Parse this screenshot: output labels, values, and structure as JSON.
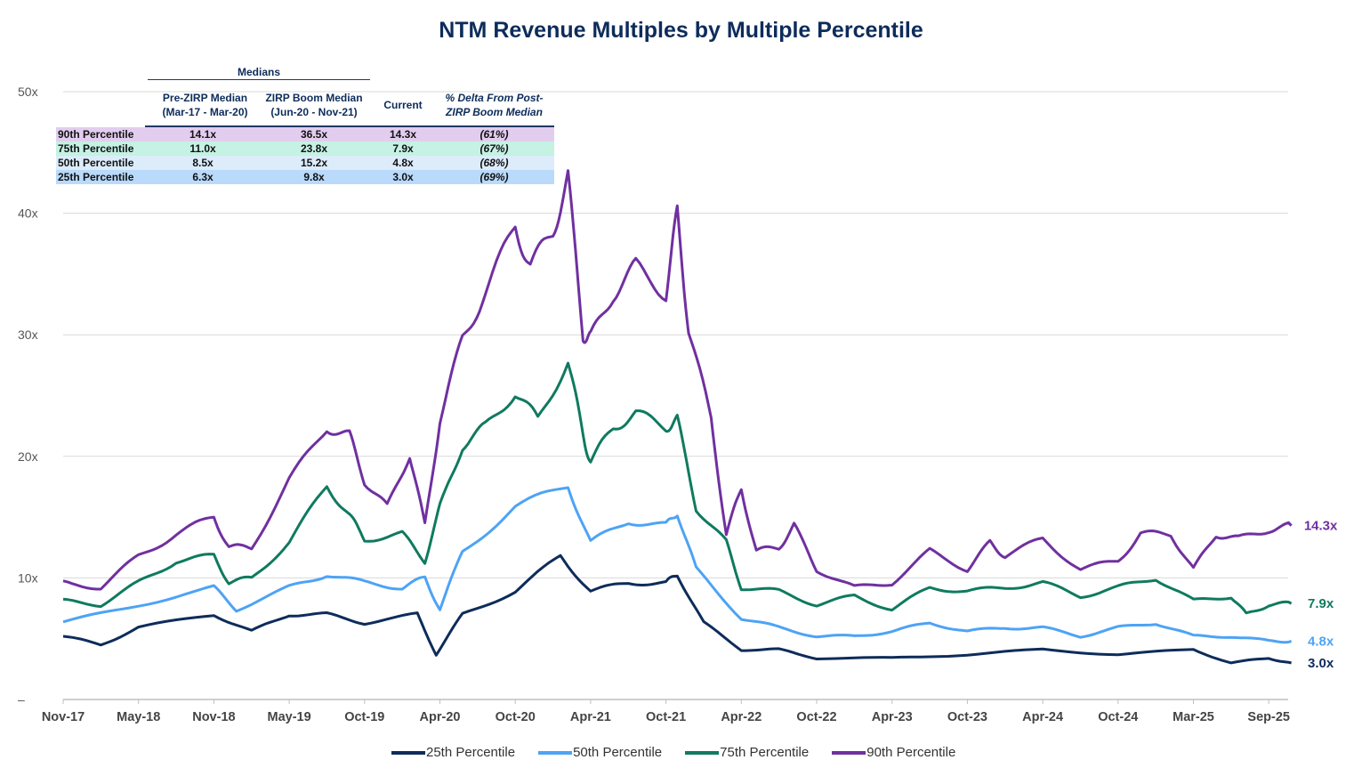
{
  "chart_data": {
    "type": "line",
    "title": "NTM Revenue Multiples by Multiple Percentile",
    "xlabel": "",
    "ylabel": "",
    "ylim": [
      0,
      50
    ],
    "y_ticks": [
      "–",
      "10x",
      "20x",
      "30x",
      "40x",
      "50x"
    ],
    "x_ticks": [
      "Nov-17",
      "May-18",
      "Nov-18",
      "May-19",
      "Oct-19",
      "Apr-20",
      "Oct-20",
      "Apr-21",
      "Oct-21",
      "Apr-22",
      "Oct-22",
      "Apr-23",
      "Oct-23",
      "Apr-24",
      "Oct-24",
      "Mar-25",
      "Sep-25"
    ],
    "x_units": "tick index (0 = Nov-17, 16 = Sep-25)",
    "grid": true,
    "legend_position": "bottom",
    "series": [
      {
        "name": "25th Percentile",
        "color": "#0d2c5a",
        "end_label": "3.0x",
        "x": [
          0,
          0.5,
          1,
          2,
          2.5,
          3,
          3.5,
          4,
          4.7,
          4.95,
          5.3,
          6,
          6.6,
          7,
          7.5,
          8,
          8.15,
          8.5,
          9,
          9.5,
          10,
          11,
          12,
          13,
          14,
          15,
          15.5,
          16,
          16.3
        ],
        "y": [
          5.2,
          4.5,
          5.9,
          7,
          5.6,
          7,
          7,
          6.3,
          7,
          3.7,
          7,
          8.9,
          11.8,
          8.9,
          9.6,
          9.6,
          10.3,
          6.3,
          4.1,
          4.1,
          3.4,
          3.4,
          3.7,
          4.1,
          3.7,
          4.1,
          3,
          3.4,
          3.0
        ]
      },
      {
        "name": "50th Percentile",
        "color": "#4da3f5",
        "end_label": "4.8x",
        "x": [
          0,
          1,
          2,
          2.3,
          3,
          3.5,
          4,
          4.5,
          4.8,
          5,
          5.3,
          6,
          6.7,
          7,
          7.5,
          8,
          8.15,
          8.4,
          9,
          9.5,
          10,
          10.5,
          11,
          11.5,
          12,
          12.5,
          13,
          13.5,
          14,
          14.5,
          15,
          15.5,
          16,
          16.3
        ],
        "y": [
          6.3,
          7.8,
          9.2,
          7.4,
          9.2,
          10.3,
          9.6,
          9.2,
          10,
          7.4,
          12.2,
          15.8,
          17.6,
          12.9,
          14.7,
          14.3,
          15.4,
          10.7,
          6.7,
          5.9,
          5.2,
          5.2,
          5.6,
          6.3,
          5.6,
          5.9,
          5.9,
          5.2,
          5.9,
          6.3,
          5.2,
          5.2,
          4.8,
          4.8
        ]
      },
      {
        "name": "75th Percentile",
        "color": "#0f7a5f",
        "end_label": "7.9x",
        "x": [
          0,
          0.5,
          1,
          1.5,
          2,
          2.2,
          2.5,
          3,
          3.5,
          3.8,
          4,
          4.5,
          4.8,
          5,
          5.3,
          5.6,
          6,
          6.3,
          6.7,
          6.9,
          7,
          7.3,
          7.6,
          8,
          8.15,
          8.4,
          8.8,
          9,
          9.5,
          10,
          10.5,
          11,
          11.5,
          12,
          12.5,
          13,
          13.5,
          14,
          14.5,
          15,
          15.5,
          15.7,
          16,
          16.3
        ],
        "y": [
          8.1,
          7.8,
          9.6,
          11.4,
          11.8,
          9.6,
          10,
          12.9,
          17.6,
          15.1,
          13.2,
          13.6,
          11.4,
          15.8,
          20.9,
          22.4,
          25.3,
          23,
          27.9,
          21.7,
          19.5,
          22.4,
          23.5,
          22.4,
          23,
          15.8,
          12.9,
          9.2,
          8.9,
          7.8,
          8.5,
          7.4,
          9.2,
          8.9,
          9.2,
          9.6,
          8.5,
          9.2,
          10,
          8.1,
          8.5,
          7,
          7.8,
          7.9
        ]
      },
      {
        "name": "90th Percentile",
        "color": "#7030a0",
        "end_label": "14.3x",
        "x": [
          0,
          0.5,
          1,
          1.5,
          2,
          2.2,
          2.5,
          3,
          3.5,
          3.8,
          4,
          4.3,
          4.6,
          4.8,
          5,
          5.3,
          5.6,
          6,
          6.2,
          6.5,
          6.7,
          6.9,
          7,
          7.3,
          7.6,
          8,
          8.15,
          8.3,
          8.6,
          8.8,
          9,
          9.2,
          9.5,
          9.7,
          10,
          10.5,
          11,
          11.5,
          12,
          12.3,
          12.5,
          13,
          13.5,
          14,
          14.3,
          14.7,
          15,
          15.3,
          15.6,
          16,
          16.3
        ],
        "y": [
          9.6,
          9.2,
          11.8,
          13.6,
          15,
          12.5,
          12.5,
          18,
          22.4,
          21.7,
          18,
          15.8,
          20.2,
          14.3,
          23,
          29.7,
          33.4,
          38.9,
          35.6,
          38.5,
          42.9,
          30,
          29.7,
          33.4,
          35.6,
          33.4,
          40,
          30.5,
          23,
          13.6,
          17.3,
          12.2,
          12.5,
          14.3,
          10.7,
          9.2,
          9.6,
          12.2,
          10.7,
          12.9,
          11.8,
          13.2,
          10.7,
          11.4,
          13.6,
          13.6,
          10.7,
          13.6,
          13.2,
          14,
          14.3
        ]
      }
    ]
  },
  "table": {
    "group_header": "Medians",
    "headers": [
      "Pre-ZIRP Median\n(Mar-17 - Mar-20)",
      "ZIRP Boom Median\n(Jun-20 - Nov-21)",
      "Current",
      "% Delta From Post-\nZIRP Boom Median"
    ],
    "rows": [
      {
        "label": "90th Percentile",
        "pre": "14.1x",
        "zirp": "36.5x",
        "current": "14.3x",
        "delta": "(61%)",
        "bg": "#e2cdef"
      },
      {
        "label": "75th Percentile",
        "pre": "11.0x",
        "zirp": "23.8x",
        "current": "7.9x",
        "delta": "(67%)",
        "bg": "#c5f2e2"
      },
      {
        "label": "50th Percentile",
        "pre": "8.5x",
        "zirp": "15.2x",
        "current": "4.8x",
        "delta": "(68%)",
        "bg": "#dcecfb"
      },
      {
        "label": "25th Percentile",
        "pre": "6.3x",
        "zirp": "9.8x",
        "current": "3.0x",
        "delta": "(69%)",
        "bg": "#b9dafa"
      }
    ]
  }
}
